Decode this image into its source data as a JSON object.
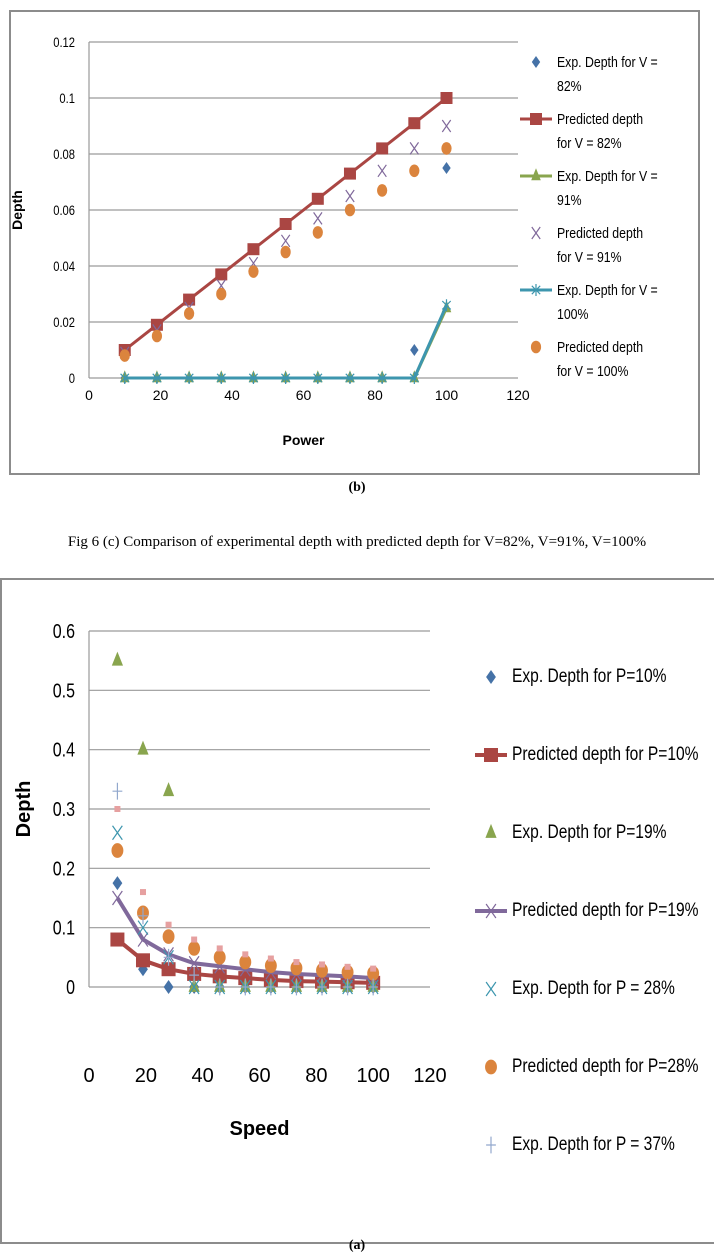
{
  "captions": {
    "top_sub": "(b)",
    "figure": "Fig 6 (c) Comparison of experimental depth with predicted depth for V=82%, V=91%, V=100%",
    "bottom_sub": "(a)"
  },
  "chart_data": [
    {
      "type": "scatter",
      "xlabel": "Power",
      "ylabel": "Depth",
      "xlim": [
        0,
        120
      ],
      "ylim": [
        0,
        0.12
      ],
      "xticks": [
        "0",
        "20",
        "40",
        "60",
        "80",
        "100",
        "120"
      ],
      "yticks": [
        "0",
        "0.02",
        "0.04",
        "0.06",
        "0.08",
        "0.1",
        "0.12"
      ],
      "grid": "horizontal",
      "legend": "right",
      "x": [
        10,
        19,
        28,
        37,
        46,
        55,
        64,
        73,
        82,
        91,
        100
      ],
      "series": [
        {
          "name": "Exp. Depth for V = 82%",
          "legend_lines": [
            "Exp. Depth for V =",
            "82%"
          ],
          "marker": "diamond",
          "line": false,
          "color": "#4572a7",
          "values": [
            0,
            0,
            0,
            0,
            0,
            0,
            0,
            0,
            0,
            0.01,
            0.075
          ]
        },
        {
          "name": "Predicted depth for V = 82%",
          "legend_lines": [
            "Predicted depth",
            "for V = 82%"
          ],
          "marker": "square",
          "line": true,
          "color": "#aa4643",
          "values": [
            0.01,
            0.019,
            0.028,
            0.037,
            0.046,
            0.055,
            0.064,
            0.073,
            0.082,
            0.091,
            0.1
          ]
        },
        {
          "name": "Exp. Depth for V = 91%",
          "legend_lines": [
            "Exp. Depth for V =",
            "91%"
          ],
          "marker": "triangle",
          "line": true,
          "color": "#89a54e",
          "values": [
            0,
            0,
            0,
            0,
            0,
            0,
            0,
            0,
            0,
            0,
            0.025
          ]
        },
        {
          "name": "Predicted depth for V = 91%",
          "legend_lines": [
            "Predicted depth",
            "for V = 91%"
          ],
          "marker": "x",
          "line": false,
          "color": "#80699b",
          "values": [
            0.009,
            0.017,
            0.025,
            0.033,
            0.041,
            0.049,
            0.057,
            0.065,
            0.074,
            0.082,
            0.09
          ]
        },
        {
          "name": "Exp. Depth for V = 100%",
          "legend_lines": [
            "Exp. Depth for V =",
            "100%"
          ],
          "marker": "star",
          "line": true,
          "color": "#3d96ae",
          "values": [
            0,
            0,
            0,
            0,
            0,
            0,
            0,
            0,
            0,
            0,
            0.026
          ]
        },
        {
          "name": "Predicted depth for V = 100%",
          "legend_lines": [
            "Predicted depth",
            "for V = 100%"
          ],
          "marker": "circle",
          "line": false,
          "color": "#db843d",
          "values": [
            0.008,
            0.015,
            0.023,
            0.03,
            0.038,
            0.045,
            0.052,
            0.06,
            0.067,
            0.074,
            0.082
          ]
        }
      ]
    },
    {
      "type": "scatter",
      "xlabel": "Speed",
      "ylabel": "Depth",
      "xlim": [
        0,
        120
      ],
      "ylim": [
        0,
        0.6
      ],
      "xticks": [
        "0",
        "20",
        "40",
        "60",
        "80",
        "100",
        "120"
      ],
      "yticks": [
        "0",
        "0.1",
        "0.2",
        "0.3",
        "0.4",
        "0.5",
        "0.6"
      ],
      "grid": "horizontal",
      "legend": "right",
      "x": [
        10,
        19,
        28,
        37,
        46,
        55,
        64,
        73,
        82,
        91,
        100
      ],
      "series": [
        {
          "name": "Exp. Depth for P=10%",
          "marker": "diamond",
          "line": false,
          "color": "#4572a7",
          "values": [
            0.175,
            0.03,
            0,
            0,
            0,
            0,
            0,
            0,
            0,
            0,
            0
          ]
        },
        {
          "name": "Predicted depth for P=10%",
          "marker": "square",
          "line": true,
          "color": "#aa4643",
          "values": [
            0.08,
            0.045,
            0.03,
            0.022,
            0.018,
            0.015,
            0.012,
            0.01,
            0.009,
            0.008,
            0.007
          ]
        },
        {
          "name": "Exp. Depth for P=19%",
          "marker": "triangle",
          "line": false,
          "color": "#89a54e",
          "values": [
            0.55,
            0.4,
            0.33,
            0,
            0,
            0,
            0,
            0,
            0,
            0,
            0
          ]
        },
        {
          "name": "Predicted depth for P=19%",
          "marker": "x",
          "line": true,
          "color": "#80699b",
          "values": [
            0.15,
            0.08,
            0.055,
            0.04,
            0.035,
            0.03,
            0.025,
            0.022,
            0.02,
            0.018,
            0.015
          ]
        },
        {
          "name": "Exp. Depth for P = 28%",
          "marker": "x",
          "line": false,
          "color": "#3d96ae",
          "values": [
            0.26,
            0.1,
            0.05,
            0,
            0,
            0,
            0,
            0,
            0,
            0,
            0
          ]
        },
        {
          "name": "Predicted depth for P=28%",
          "marker": "circle",
          "line": false,
          "color": "#db843d",
          "values": [
            0.23,
            0.125,
            0.085,
            0.065,
            0.05,
            0.042,
            0.036,
            0.032,
            0.028,
            0.025,
            0.023
          ]
        },
        {
          "name": "Exp. Depth for P = 37%",
          "marker": "plus",
          "line": false,
          "color": "#92a8cd",
          "values": [
            0.33,
            0.12,
            0.05,
            0.02,
            0,
            0,
            0,
            0,
            0,
            0,
            0
          ]
        },
        {
          "marker": "smallsquare",
          "line": false,
          "color": "#e6a0a0",
          "values": [
            0.3,
            0.16,
            0.105,
            0.08,
            0.065,
            0.055,
            0.048,
            0.042,
            0.038,
            0.034,
            0.031
          ]
        }
      ]
    }
  ]
}
